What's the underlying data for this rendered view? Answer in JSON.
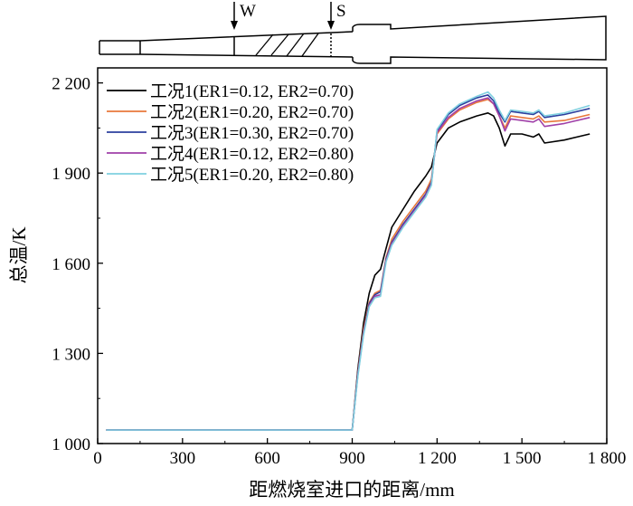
{
  "chart_data": {
    "type": "line",
    "xlabel": "距燃烧室进口的距离/mm",
    "ylabel": "总温/K",
    "xlim": [
      0,
      1800
    ],
    "ylim": [
      1000,
      2250
    ],
    "x_ticks": [
      {
        "value": 0,
        "label": "0"
      },
      {
        "value": 300,
        "label": "300"
      },
      {
        "value": 600,
        "label": "600"
      },
      {
        "value": 900,
        "label": "900"
      },
      {
        "value": 1200,
        "label": "1 200"
      },
      {
        "value": 1500,
        "label": "1 500"
      },
      {
        "value": 1800,
        "label": "1 800"
      }
    ],
    "y_ticks": [
      {
        "value": 1000,
        "label": "1 000"
      },
      {
        "value": 1300,
        "label": "1 300"
      },
      {
        "value": 1600,
        "label": "1 600"
      },
      {
        "value": 1900,
        "label": "1 900"
      },
      {
        "value": 2200,
        "label": "2 200"
      }
    ],
    "legend_position": "top-left",
    "grid": false,
    "markers": [
      {
        "label": "W",
        "x": 480
      },
      {
        "label": "S",
        "x": 830
      }
    ],
    "series": [
      {
        "name": "工况1(ER1=0.12, ER2=0.70)",
        "color": "#000000",
        "points": [
          [
            30,
            1045
          ],
          [
            900,
            1045
          ],
          [
            920,
            1250
          ],
          [
            940,
            1400
          ],
          [
            960,
            1500
          ],
          [
            980,
            1560
          ],
          [
            1000,
            1580
          ],
          [
            1020,
            1650
          ],
          [
            1040,
            1720
          ],
          [
            1080,
            1780
          ],
          [
            1120,
            1840
          ],
          [
            1160,
            1890
          ],
          [
            1180,
            1920
          ],
          [
            1200,
            2000
          ],
          [
            1240,
            2050
          ],
          [
            1280,
            2070
          ],
          [
            1340,
            2090
          ],
          [
            1380,
            2100
          ],
          [
            1400,
            2090
          ],
          [
            1420,
            2050
          ],
          [
            1440,
            1990
          ],
          [
            1460,
            2030
          ],
          [
            1500,
            2030
          ],
          [
            1540,
            2020
          ],
          [
            1560,
            2030
          ],
          [
            1580,
            2000
          ],
          [
            1650,
            2010
          ],
          [
            1740,
            2030
          ]
        ]
      },
      {
        "name": "工况2(ER1=0.20, ER2=0.70)",
        "color": "#e8783c",
        "points": [
          [
            30,
            1045
          ],
          [
            900,
            1045
          ],
          [
            920,
            1240
          ],
          [
            940,
            1380
          ],
          [
            960,
            1470
          ],
          [
            980,
            1500
          ],
          [
            1000,
            1510
          ],
          [
            1020,
            1620
          ],
          [
            1040,
            1680
          ],
          [
            1080,
            1740
          ],
          [
            1120,
            1790
          ],
          [
            1160,
            1840
          ],
          [
            1180,
            1880
          ],
          [
            1200,
            2030
          ],
          [
            1240,
            2080
          ],
          [
            1280,
            2110
          ],
          [
            1340,
            2135
          ],
          [
            1380,
            2145
          ],
          [
            1400,
            2130
          ],
          [
            1420,
            2090
          ],
          [
            1440,
            2050
          ],
          [
            1460,
            2090
          ],
          [
            1500,
            2085
          ],
          [
            1540,
            2080
          ],
          [
            1560,
            2090
          ],
          [
            1580,
            2070
          ],
          [
            1650,
            2075
          ],
          [
            1740,
            2095
          ]
        ]
      },
      {
        "name": "工况3(ER1=0.30, ER2=0.70)",
        "color": "#2b3f9e",
        "points": [
          [
            30,
            1045
          ],
          [
            900,
            1045
          ],
          [
            920,
            1235
          ],
          [
            940,
            1370
          ],
          [
            960,
            1465
          ],
          [
            980,
            1495
          ],
          [
            1000,
            1505
          ],
          [
            1020,
            1615
          ],
          [
            1040,
            1670
          ],
          [
            1080,
            1730
          ],
          [
            1120,
            1780
          ],
          [
            1160,
            1830
          ],
          [
            1180,
            1870
          ],
          [
            1200,
            2040
          ],
          [
            1240,
            2095
          ],
          [
            1280,
            2125
          ],
          [
            1340,
            2150
          ],
          [
            1380,
            2160
          ],
          [
            1400,
            2140
          ],
          [
            1420,
            2100
          ],
          [
            1440,
            2070
          ],
          [
            1460,
            2105
          ],
          [
            1500,
            2100
          ],
          [
            1540,
            2095
          ],
          [
            1560,
            2105
          ],
          [
            1580,
            2085
          ],
          [
            1650,
            2095
          ],
          [
            1740,
            2115
          ]
        ]
      },
      {
        "name": "工况4(ER1=0.12, ER2=0.80)",
        "color": "#a040a8",
        "points": [
          [
            30,
            1045
          ],
          [
            900,
            1045
          ],
          [
            920,
            1230
          ],
          [
            940,
            1365
          ],
          [
            960,
            1460
          ],
          [
            980,
            1490
          ],
          [
            1000,
            1495
          ],
          [
            1020,
            1610
          ],
          [
            1040,
            1665
          ],
          [
            1080,
            1725
          ],
          [
            1120,
            1775
          ],
          [
            1160,
            1825
          ],
          [
            1180,
            1865
          ],
          [
            1200,
            2035
          ],
          [
            1240,
            2085
          ],
          [
            1280,
            2115
          ],
          [
            1340,
            2140
          ],
          [
            1380,
            2150
          ],
          [
            1400,
            2130
          ],
          [
            1420,
            2090
          ],
          [
            1440,
            2040
          ],
          [
            1460,
            2080
          ],
          [
            1500,
            2075
          ],
          [
            1540,
            2070
          ],
          [
            1560,
            2080
          ],
          [
            1580,
            2055
          ],
          [
            1650,
            2065
          ],
          [
            1740,
            2085
          ]
        ]
      },
      {
        "name": "工况5(ER1=0.20, ER2=0.80)",
        "color": "#7fd0e0",
        "points": [
          [
            30,
            1045
          ],
          [
            900,
            1045
          ],
          [
            920,
            1225
          ],
          [
            940,
            1360
          ],
          [
            960,
            1455
          ],
          [
            980,
            1485
          ],
          [
            1000,
            1490
          ],
          [
            1020,
            1605
          ],
          [
            1040,
            1660
          ],
          [
            1080,
            1720
          ],
          [
            1120,
            1770
          ],
          [
            1160,
            1820
          ],
          [
            1180,
            1860
          ],
          [
            1200,
            2045
          ],
          [
            1240,
            2100
          ],
          [
            1280,
            2130
          ],
          [
            1340,
            2155
          ],
          [
            1380,
            2170
          ],
          [
            1400,
            2150
          ],
          [
            1420,
            2110
          ],
          [
            1440,
            2075
          ],
          [
            1460,
            2110
          ],
          [
            1500,
            2105
          ],
          [
            1540,
            2100
          ],
          [
            1560,
            2110
          ],
          [
            1580,
            2090
          ],
          [
            1650,
            2100
          ],
          [
            1740,
            2125
          ]
        ]
      }
    ]
  }
}
